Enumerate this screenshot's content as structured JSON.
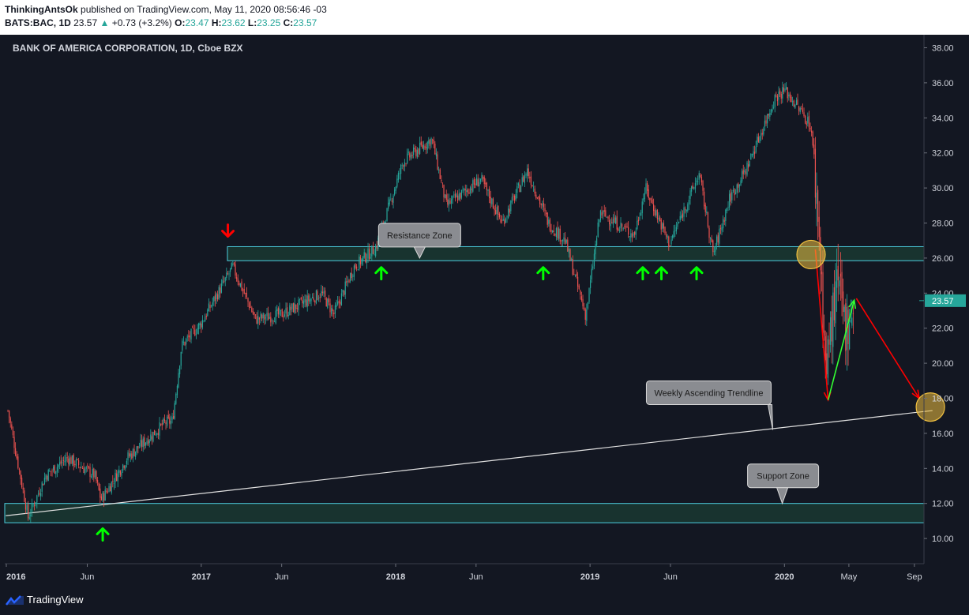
{
  "header": {
    "author": "ThinkingAntsOk",
    "published": "published on TradingView.com, May 11, 2020 08:56:46 -03",
    "symbol": "BATS:BAC, 1D",
    "last": "23.57",
    "change_arrow": "▲",
    "change": "+0.73 (+3.2%)",
    "o_label": "O:",
    "o_value": "23.47",
    "h_label": "H:",
    "h_value": "23.62",
    "l_label": "L:",
    "l_value": "23.25",
    "c_label": "C:",
    "c_value": "23.57"
  },
  "footer": {
    "brand": "TradingView"
  },
  "colors": {
    "background": "#131722",
    "up_candle": "#26a69a",
    "down_candle": "#ef5350",
    "zone_stroke": "#4dd0e1",
    "zone_fill": "#1e4a3a",
    "green_arrow": "#00ff00",
    "red_arrow": "#ff0000",
    "highlight_circle": "#f0c040"
  },
  "chart_data": {
    "type": "candlestick",
    "title": "BANK OF AMERICA CORPORATION, 1D, Cboe BZX",
    "x_ticks": [
      "2016",
      "Jun",
      "2017",
      "Jun",
      "2018",
      "Jun",
      "2019",
      "Jun",
      "2020",
      "May",
      "Sep"
    ],
    "y_ticks": [
      "38.00",
      "36.00",
      "34.00",
      "32.00",
      "30.00",
      "28.00",
      "26.00",
      "24.00",
      "22.00",
      "20.00",
      "18.00",
      "16.00",
      "14.00",
      "12.00",
      "10.00"
    ],
    "ylim": [
      9.0,
      38.5
    ],
    "last_price": "23.57",
    "price_path": [
      [
        "2016-01-04",
        17.3
      ],
      [
        "2016-02-11",
        11.2
      ],
      [
        "2016-03-15",
        13.6
      ],
      [
        "2016-04-25",
        14.6
      ],
      [
        "2016-06-15",
        13.6
      ],
      [
        "2016-06-27",
        12.2
      ],
      [
        "2016-08-15",
        14.6
      ],
      [
        "2016-10-25",
        16.6
      ],
      [
        "2016-11-08",
        16.7
      ],
      [
        "2016-11-25",
        21.0
      ],
      [
        "2016-12-30",
        22.2
      ],
      [
        "2017-03-01",
        25.5
      ],
      [
        "2017-04-13",
        22.5
      ],
      [
        "2017-06-01",
        22.8
      ],
      [
        "2017-08-15",
        24.0
      ],
      [
        "2017-09-07",
        22.8
      ],
      [
        "2017-10-15",
        25.5
      ],
      [
        "2017-11-25",
        26.6
      ],
      [
        "2018-01-15",
        31.5
      ],
      [
        "2018-03-10",
        32.8
      ],
      [
        "2018-04-06",
        29.0
      ],
      [
        "2018-06-10",
        30.5
      ],
      [
        "2018-07-20",
        28.0
      ],
      [
        "2018-09-05",
        31.0
      ],
      [
        "2018-10-15",
        28.0
      ],
      [
        "2018-11-15",
        27.0
      ],
      [
        "2018-12-24",
        22.7
      ],
      [
        "2019-01-20",
        28.6
      ],
      [
        "2019-03-25",
        27.3
      ],
      [
        "2019-04-15",
        30.0
      ],
      [
        "2019-05-30",
        26.8
      ],
      [
        "2019-07-25",
        30.8
      ],
      [
        "2019-08-20",
        26.2
      ],
      [
        "2019-09-20",
        29.4
      ],
      [
        "2019-10-20",
        31.0
      ],
      [
        "2019-12-15",
        35.2
      ],
      [
        "2020-01-02",
        35.6
      ],
      [
        "2020-02-10",
        34.0
      ],
      [
        "2020-02-20",
        33.5
      ],
      [
        "2020-03-05",
        28.0
      ],
      [
        "2020-03-20",
        19.0
      ],
      [
        "2020-03-25",
        21.5
      ],
      [
        "2020-04-10",
        24.5
      ],
      [
        "2020-04-25",
        22.0
      ],
      [
        "2020-05-11",
        23.57
      ]
    ],
    "resistance_zone": [
      25.85,
      26.65
    ],
    "support_zone": [
      10.9,
      12.0
    ],
    "trendline": [
      [
        "2015-12-31",
        11.3
      ],
      [
        "2020-10-05",
        17.3
      ]
    ],
    "projection_down": [
      [
        "2020-02-28",
        26.5
      ],
      [
        "2020-03-23",
        17.9
      ]
    ],
    "projection_up": [
      [
        "2020-03-23",
        17.9
      ],
      [
        "2020-05-11",
        23.6
      ]
    ],
    "projection_target": [
      [
        "2020-05-15",
        23.7
      ],
      [
        "2020-09-10",
        18.0
      ]
    ],
    "highlight_circles": [
      [
        "2020-02-20",
        26.2
      ],
      [
        "2020-10-01",
        17.5
      ]
    ],
    "green_up_arrows": [
      [
        "2016-06-30",
        10.3
      ],
      [
        "2017-12-05",
        25.2
      ],
      [
        "2018-10-05",
        25.2
      ],
      [
        "2019-04-10",
        25.2
      ],
      [
        "2019-05-15",
        25.2
      ],
      [
        "2019-07-20",
        25.2
      ]
    ],
    "red_down_arrows": [
      [
        "2017-02-20",
        27.5
      ]
    ],
    "annotations": [
      {
        "text": "Resistance Zone",
        "anchor": [
          "2018-02-15",
          26.0
        ]
      },
      {
        "text": "Weekly Ascending Trendline",
        "anchor": [
          "2019-12-10",
          16.2
        ]
      },
      {
        "text": "Support Zone",
        "anchor": [
          "2019-12-28",
          12.0
        ]
      }
    ]
  }
}
